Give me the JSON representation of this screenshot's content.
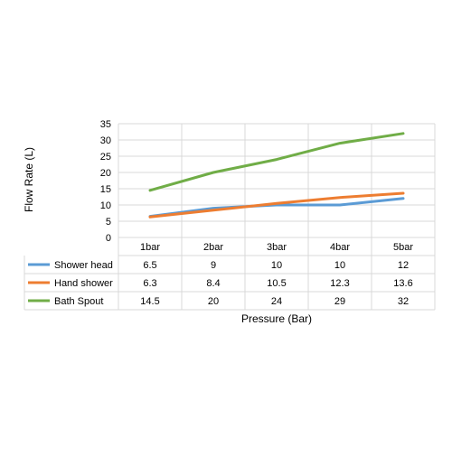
{
  "chart_data": {
    "type": "line",
    "title": "",
    "xlabel": "Pressure (Bar)",
    "ylabel": "Flow Rate (L)",
    "categories": [
      "1bar",
      "2bar",
      "3bar",
      "4bar",
      "5bar"
    ],
    "ylim": [
      0,
      35
    ],
    "yticks": [
      0,
      5,
      10,
      15,
      20,
      25,
      30,
      35
    ],
    "grid": true,
    "legend_placement": "data-table",
    "series": [
      {
        "name": "Shower head",
        "values": [
          6.5,
          9,
          10,
          10,
          12
        ],
        "value_labels": [
          "6.5",
          "9",
          "10",
          "10",
          "12"
        ],
        "color": "#5B9BD5"
      },
      {
        "name": "Hand shower",
        "values": [
          6.3,
          8.4,
          10.5,
          12.3,
          13.6
        ],
        "value_labels": [
          "6.3",
          "8.4",
          "10.5",
          "12.3",
          "13.6"
        ],
        "color": "#ED7D31"
      },
      {
        "name": "Bath Spout",
        "values": [
          14.5,
          20,
          24,
          29,
          32
        ],
        "value_labels": [
          "14.5",
          "20",
          "24",
          "29",
          "32"
        ],
        "color": "#70AD47"
      }
    ],
    "colors": {
      "grid": "#D9D9D9",
      "axis_text": "#000000"
    }
  }
}
